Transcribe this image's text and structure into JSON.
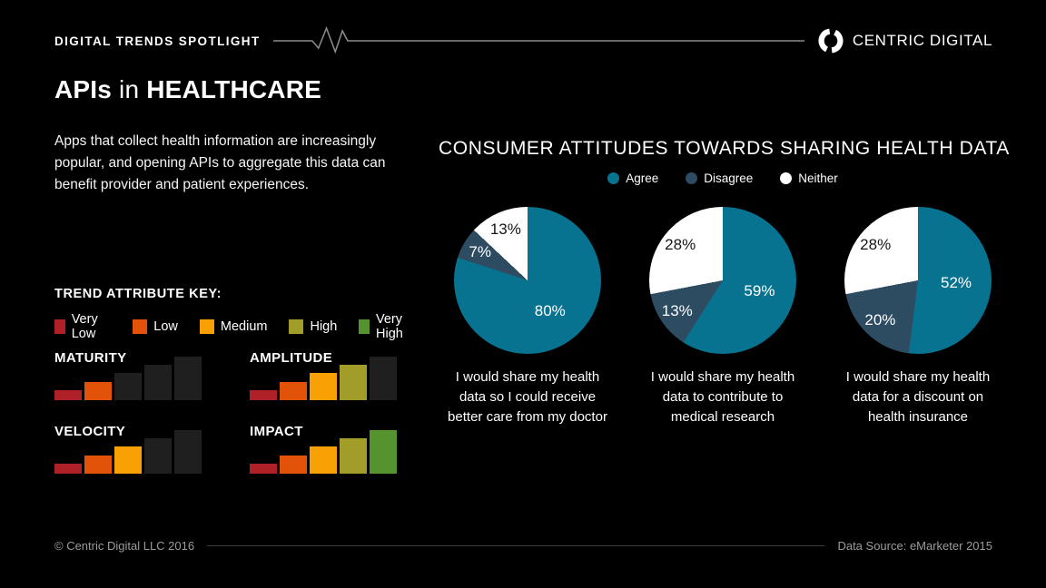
{
  "header": {
    "eyebrow": "DIGITAL TRENDS SPOTLIGHT",
    "brand": "CENTRIC DIGITAL"
  },
  "title": {
    "lead": "APIs",
    "mid": " in ",
    "tail": "HEALTHCARE"
  },
  "intro": "Apps that collect health information are increasingly popular, and opening APIs to aggregate this data can benefit provider and patient experiences.",
  "trend_key": {
    "heading": "TREND ATTRIBUTE KEY:",
    "levels": [
      {
        "label": "Very Low",
        "color": "#b02127"
      },
      {
        "label": "Low",
        "color": "#e25309"
      },
      {
        "label": "Medium",
        "color": "#f9a005"
      },
      {
        "label": "High",
        "color": "#a29d28"
      },
      {
        "label": "Very High",
        "color": "#55932f"
      }
    ],
    "inactive_color": "#1f1f1f"
  },
  "chart_data": [
    {
      "type": "pie",
      "title": "CONSUMER ATTITUDES TOWARDS SHARING HEALTH DATA",
      "legend": [
        {
          "label": "Agree",
          "color": "#087390"
        },
        {
          "label": "Disagree",
          "color": "#2d4c62"
        },
        {
          "label": "Neither",
          "color": "#ffffff"
        }
      ],
      "labels_unit": "%",
      "start_angle_deg": 0,
      "direction": "clockwise",
      "pies": [
        {
          "caption": "I would share my health data so I could receive better care from my doctor",
          "values": [
            80,
            7,
            13
          ]
        },
        {
          "caption": "I would share my health data to contribute to medical research",
          "values": [
            59,
            13,
            28
          ]
        },
        {
          "caption": "I would share my health data for a discount on health insurance",
          "values": [
            52,
            20,
            28
          ]
        }
      ]
    },
    {
      "type": "bar",
      "title": "TREND ATTRIBUTE KEY",
      "categories": [
        "Very Low",
        "Low",
        "Medium",
        "High",
        "Very High"
      ],
      "series": [
        {
          "name": "MATURITY",
          "active_levels": 2
        },
        {
          "name": "AMPLITUDE",
          "active_levels": 4
        },
        {
          "name": "VELOCITY",
          "active_levels": 3
        },
        {
          "name": "IMPACT",
          "active_levels": 5
        }
      ],
      "note": "five ascending step bars per attribute; bars colored with level colors up to active_levels, remainder inactive"
    }
  ],
  "footer": {
    "copyright": "© Centric Digital LLC 2016",
    "source": "Data Source: eMarketer 2015"
  }
}
